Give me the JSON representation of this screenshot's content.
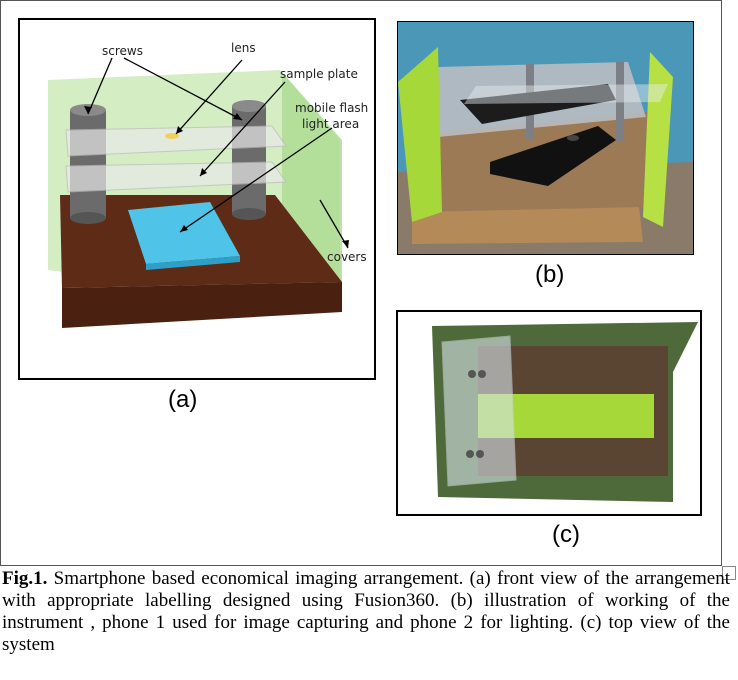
{
  "panel_a": {
    "labels": {
      "screws": "screws",
      "lens": "lens",
      "sample_plate": "sample plate",
      "mobile_flash_1": "mobile flash",
      "mobile_flash_2": "light area",
      "covers": "covers"
    },
    "caption": "(a)"
  },
  "panel_b": {
    "caption": "(b)"
  },
  "panel_c": {
    "caption": "(c)"
  },
  "figure_caption": {
    "label": "Fig.1.",
    "text": " Smartphone based economical imaging arrangement. (a) front view of the arrangement with appropriate labelling designed using Fusion360. (b) illustration of working of the instrument , phone 1 used for image capturing and phone 2 for lighting. (c) top view of the system"
  },
  "colors": {
    "base_wood": "#5e2b17",
    "cover_green": "#b7e0a0",
    "flash_blue": "#4fc3e8",
    "screw_gray": "#6e6e6e",
    "lime": "#a6d83a"
  }
}
